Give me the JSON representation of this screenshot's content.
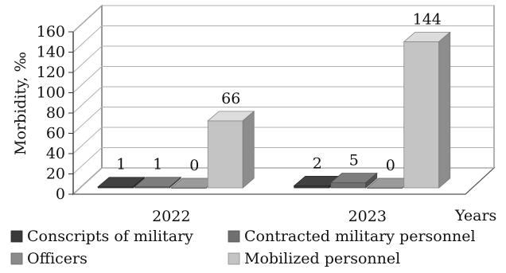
{
  "chart_data": {
    "type": "bar",
    "title": "",
    "categories": [
      "2022",
      "2023"
    ],
    "xlabel": "Years",
    "ylabel": "Morbidity, ‰",
    "ylim": [
      0,
      160
    ],
    "yticks": [
      "0",
      "20",
      "40",
      "60",
      "80",
      "100",
      "120",
      "140",
      "160"
    ],
    "grid": true,
    "legend_position": "bottom",
    "series": [
      {
        "name": "Conscripts of military",
        "values": [
          1,
          2
        ],
        "color": "#3a3a3a"
      },
      {
        "name": "Contracted military personnel",
        "values": [
          1,
          5
        ],
        "color": "#707070"
      },
      {
        "name": "Officers",
        "values": [
          0,
          0
        ],
        "color": "#8a8a8a"
      },
      {
        "name": "Mobilized personnel",
        "values": [
          66,
          144
        ],
        "color": "#c4c4c4"
      }
    ]
  }
}
